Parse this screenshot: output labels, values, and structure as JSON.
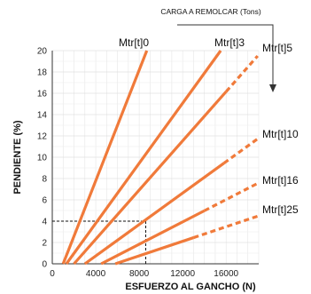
{
  "chart_data": {
    "type": "line",
    "title": "",
    "header": "CARGA A REMOLCAR (Tons)",
    "xlabel": "ESFUERZO AL GANCHO (N)",
    "ylabel": "PENDIENTE (%)",
    "xlim": [
      0,
      19000
    ],
    "ylim": [
      0,
      20
    ],
    "xticks": [
      0,
      4000,
      8000,
      12000,
      16000
    ],
    "yticks": [
      0,
      2,
      4,
      6,
      8,
      10,
      12,
      14,
      16,
      18,
      20
    ],
    "grid": true,
    "series_color": "#f07a3a",
    "series": [
      {
        "name": "Mtr[t]0",
        "points": [
          [
            1000,
            0
          ],
          [
            8700,
            20
          ]
        ],
        "dashed_from": null
      },
      {
        "name": "Mtr[t]3",
        "points": [
          [
            1300,
            0
          ],
          [
            15500,
            20
          ]
        ],
        "dashed_from": null
      },
      {
        "name": "Mtr[t]5",
        "points": [
          [
            2000,
            0
          ],
          [
            18900,
            19.5
          ]
        ],
        "dashed_from": 16000
      },
      {
        "name": "Mtr[t]10",
        "points": [
          [
            3000,
            0
          ],
          [
            19000,
            11.8
          ]
        ],
        "dashed_from": 15800
      },
      {
        "name": "Mtr[t]16",
        "points": [
          [
            4500,
            0
          ],
          [
            19000,
            7.6
          ]
        ],
        "dashed_from": 14000
      },
      {
        "name": "Mtr[t]25",
        "points": [
          [
            5800,
            0
          ],
          [
            19000,
            4.5
          ]
        ],
        "dashed_from": 13000
      }
    ],
    "reference_point": {
      "x": 8600,
      "y": 4
    }
  }
}
